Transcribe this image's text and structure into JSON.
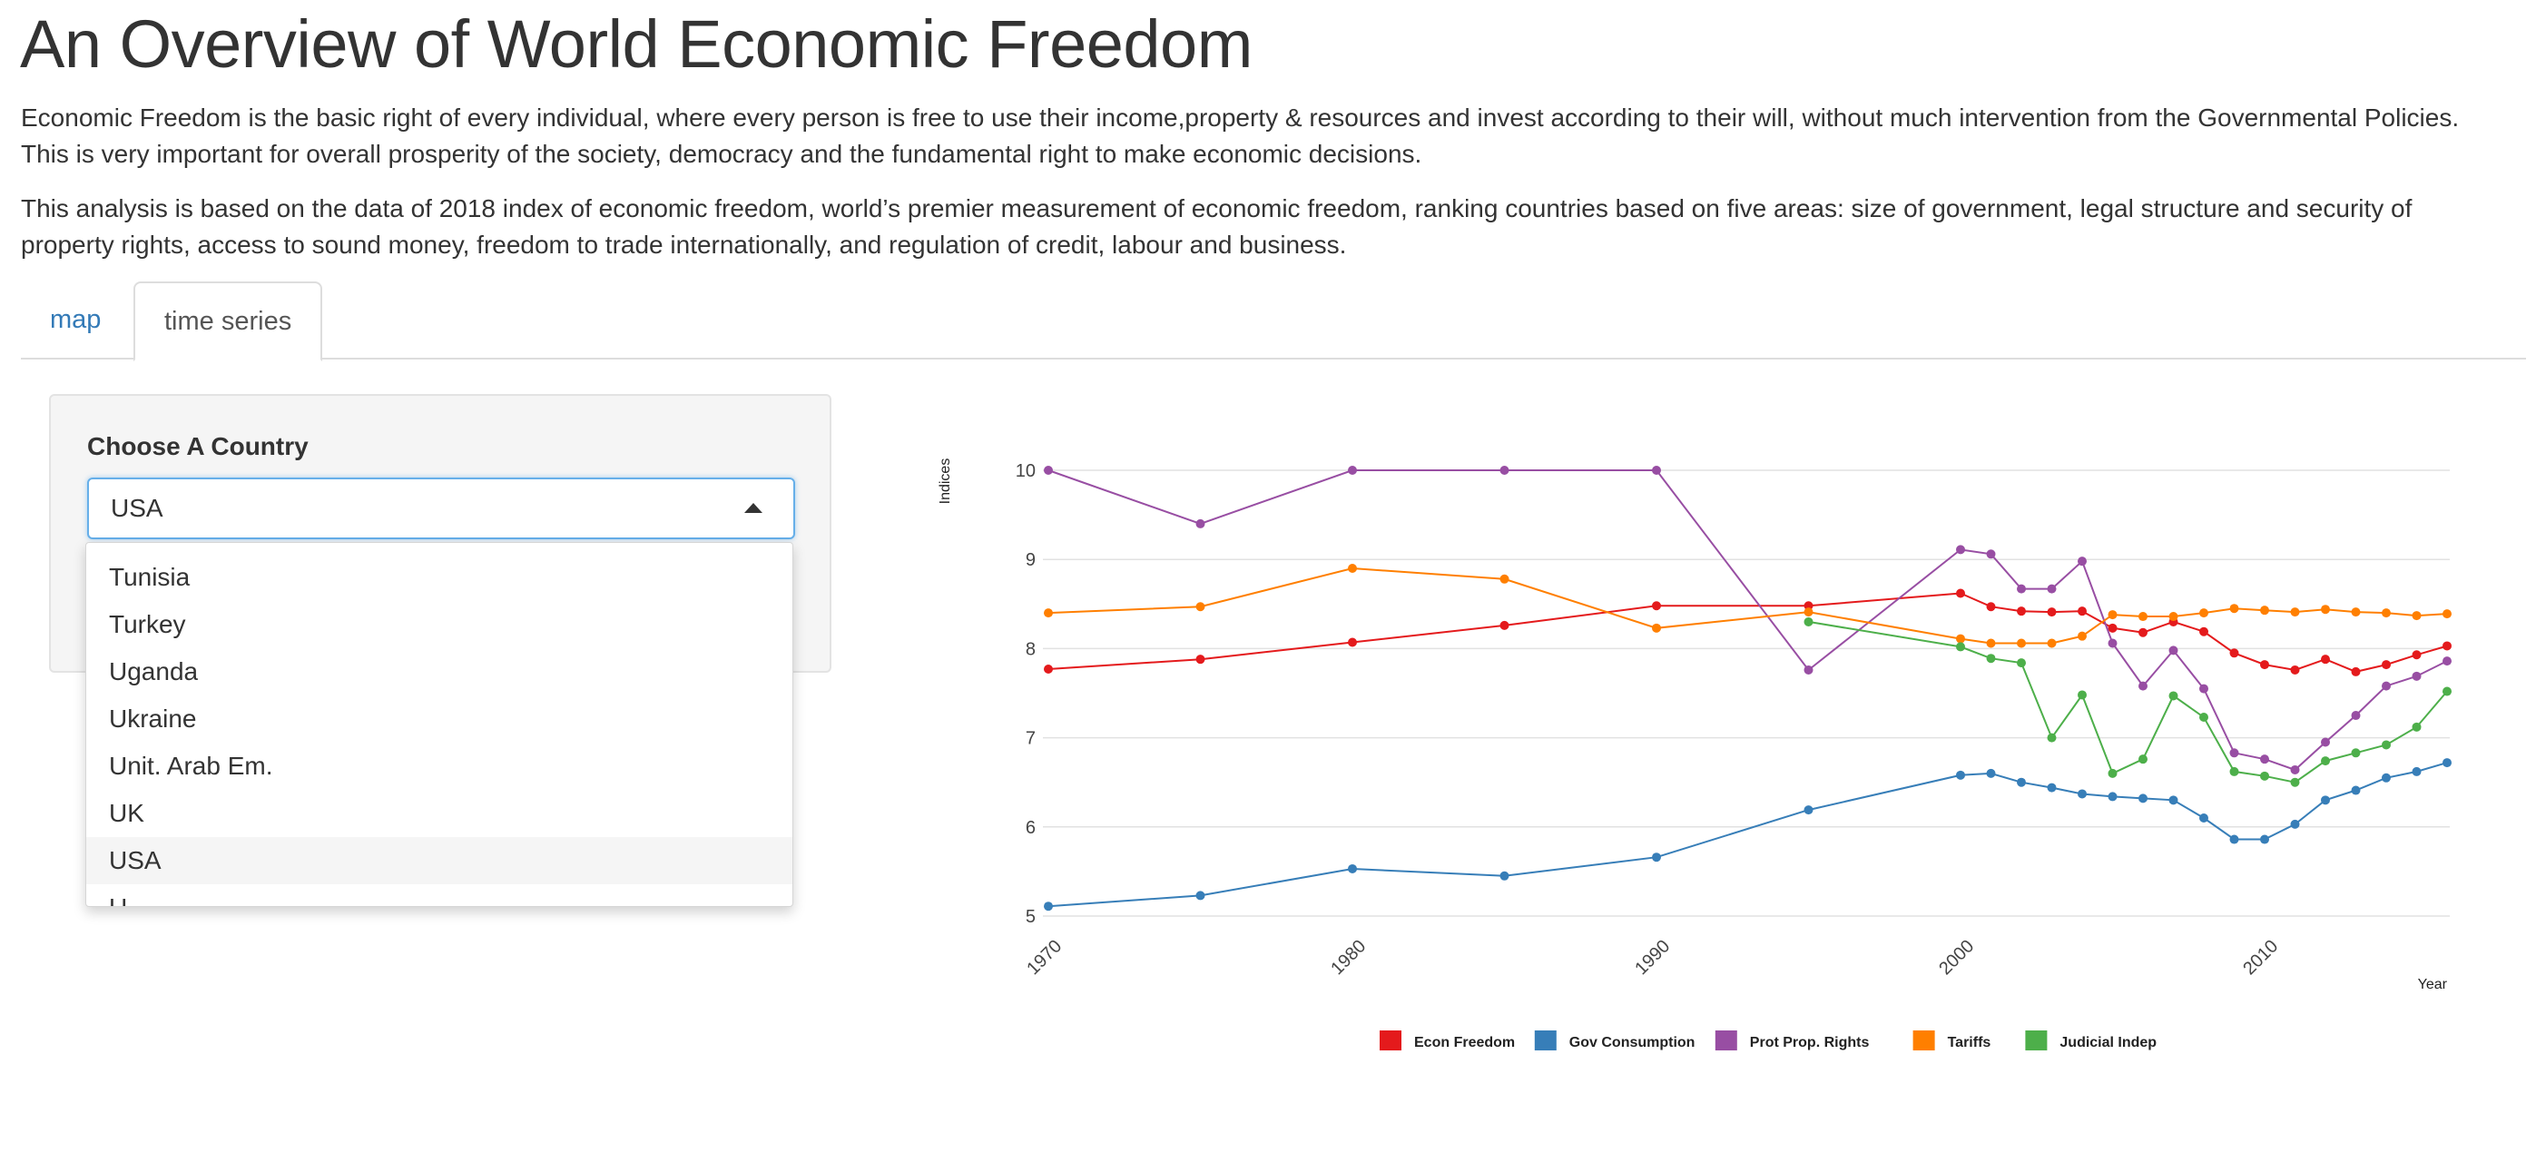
{
  "page": {
    "title": "An Overview of World Economic Freedom",
    "paragraph1": "Economic Freedom is the basic right of every individual, where every person is free to use their income,property & resources and invest according to their will, without much intervention from the Governmental Policies. This is very important for overall prosperity of the society, democracy and the fundamental right to make economic decisions.",
    "paragraph2": "This analysis is based on the data of 2018 index of economic freedom, world’s premier measurement of economic freedom, ranking countries based on five areas: size of government, legal structure and security of property rights, access to sound money, freedom to trade internationally, and regulation of credit, labour and business."
  },
  "tabs": [
    {
      "label": "map",
      "active": false
    },
    {
      "label": "time series",
      "active": true
    }
  ],
  "sidebar": {
    "label": "Choose A Country",
    "selected": "USA",
    "options": [
      "Tunisia",
      "Turkey",
      "Uganda",
      "Ukraine",
      "Unit. Arab Em.",
      "UK",
      "USA",
      "U"
    ],
    "selected_index": 6
  },
  "chart_data": {
    "type": "line",
    "title": "",
    "xlabel": "Year",
    "ylabel": "Indices",
    "xlim": [
      1970,
      2016
    ],
    "ylim": [
      5,
      10
    ],
    "x_ticks": [
      1970,
      1980,
      1990,
      2000,
      2010
    ],
    "y_ticks": [
      5,
      6,
      7,
      8,
      9,
      10
    ],
    "grid": true,
    "legend_position": "bottom",
    "series": [
      {
        "name": "Econ Freedom",
        "color": "#e41a1c",
        "x": [
          1970,
          1975,
          1980,
          1985,
          1990,
          1995,
          2000,
          2001,
          2002,
          2003,
          2004,
          2005,
          2006,
          2007,
          2008,
          2009,
          2010,
          2011,
          2012,
          2013,
          2014,
          2015,
          2016
        ],
        "y": [
          7.77,
          7.88,
          8.07,
          8.26,
          8.48,
          8.48,
          8.62,
          8.47,
          8.42,
          8.41,
          8.42,
          8.23,
          8.18,
          8.3,
          8.19,
          7.95,
          7.82,
          7.76,
          7.88,
          7.74,
          7.82,
          7.93,
          8.03
        ]
      },
      {
        "name": "Gov Consumption",
        "color": "#377eb8",
        "x": [
          1970,
          1975,
          1980,
          1985,
          1990,
          1995,
          2000,
          2001,
          2002,
          2003,
          2004,
          2005,
          2006,
          2007,
          2008,
          2009,
          2010,
          2011,
          2012,
          2013,
          2014,
          2015,
          2016
        ],
        "y": [
          5.11,
          5.23,
          5.53,
          5.45,
          5.66,
          6.19,
          6.58,
          6.6,
          6.5,
          6.44,
          6.37,
          6.34,
          6.32,
          6.3,
          6.1,
          5.86,
          5.86,
          6.03,
          6.3,
          6.41,
          6.55,
          6.62,
          6.72
        ]
      },
      {
        "name": "Prot Prop. Rights",
        "color": "#984ea3",
        "x": [
          1970,
          1975,
          1980,
          1985,
          1990,
          1995,
          2000,
          2001,
          2002,
          2003,
          2004,
          2005,
          2006,
          2007,
          2008,
          2009,
          2010,
          2011,
          2012,
          2013,
          2014,
          2015,
          2016
        ],
        "y": [
          10.0,
          9.4,
          10.0,
          10.0,
          10.0,
          7.76,
          9.11,
          9.06,
          8.67,
          8.67,
          8.98,
          8.06,
          7.58,
          7.98,
          7.55,
          6.83,
          6.76,
          6.64,
          6.95,
          7.25,
          7.58,
          7.69,
          7.86
        ]
      },
      {
        "name": "Tariffs",
        "color": "#ff7f00",
        "x": [
          1970,
          1975,
          1980,
          1985,
          1990,
          1995,
          2000,
          2001,
          2002,
          2003,
          2004,
          2005,
          2006,
          2007,
          2008,
          2009,
          2010,
          2011,
          2012,
          2013,
          2014,
          2015,
          2016
        ],
        "y": [
          8.4,
          8.47,
          8.9,
          8.78,
          8.23,
          8.41,
          8.11,
          8.06,
          8.06,
          8.06,
          8.14,
          8.38,
          8.36,
          8.36,
          8.4,
          8.45,
          8.43,
          8.41,
          8.44,
          8.41,
          8.4,
          8.37,
          8.39
        ]
      },
      {
        "name": "Judicial Indep",
        "color": "#4daf4a",
        "x": [
          1995,
          2000,
          2001,
          2002,
          2003,
          2004,
          2005,
          2006,
          2007,
          2008,
          2009,
          2010,
          2011,
          2012,
          2013,
          2014,
          2015,
          2016
        ],
        "y": [
          8.3,
          8.02,
          7.89,
          7.84,
          7.0,
          7.48,
          6.6,
          6.76,
          7.47,
          7.23,
          6.62,
          6.57,
          6.5,
          6.74,
          6.83,
          6.92,
          7.12,
          7.52
        ]
      }
    ]
  }
}
